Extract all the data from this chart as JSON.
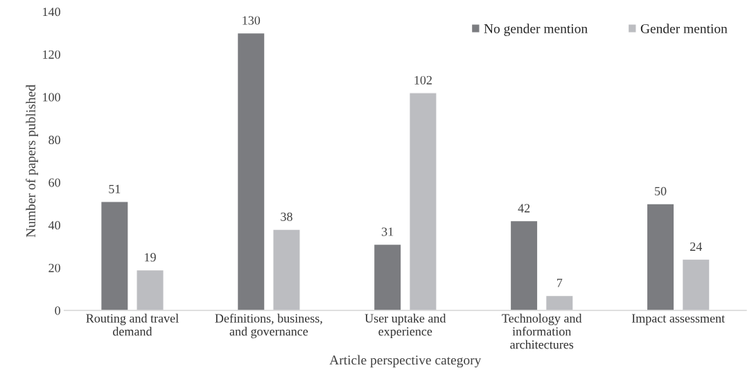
{
  "chart_data": {
    "type": "bar",
    "xlabel": "Article perspective category",
    "ylabel": "Number of papers published",
    "categories": [
      "Routing and travel\ndemand",
      "Definitions, business,\nand governance",
      "User uptake and\nexperience",
      "Technology and\ninformation\narchitectures",
      "Impact assessment"
    ],
    "series": [
      {
        "name": "No gender mention",
        "color": "#7b7c80",
        "values": [
          51,
          130,
          31,
          42,
          50
        ]
      },
      {
        "name": "Gender mention",
        "color": "#bcbdc1",
        "values": [
          19,
          38,
          102,
          7,
          24
        ]
      }
    ],
    "ylim": [
      0,
      140
    ],
    "yticks": [
      0,
      20,
      40,
      60,
      80,
      100,
      120,
      140
    ],
    "grid": false,
    "legend": "top right",
    "data_labels": true
  }
}
